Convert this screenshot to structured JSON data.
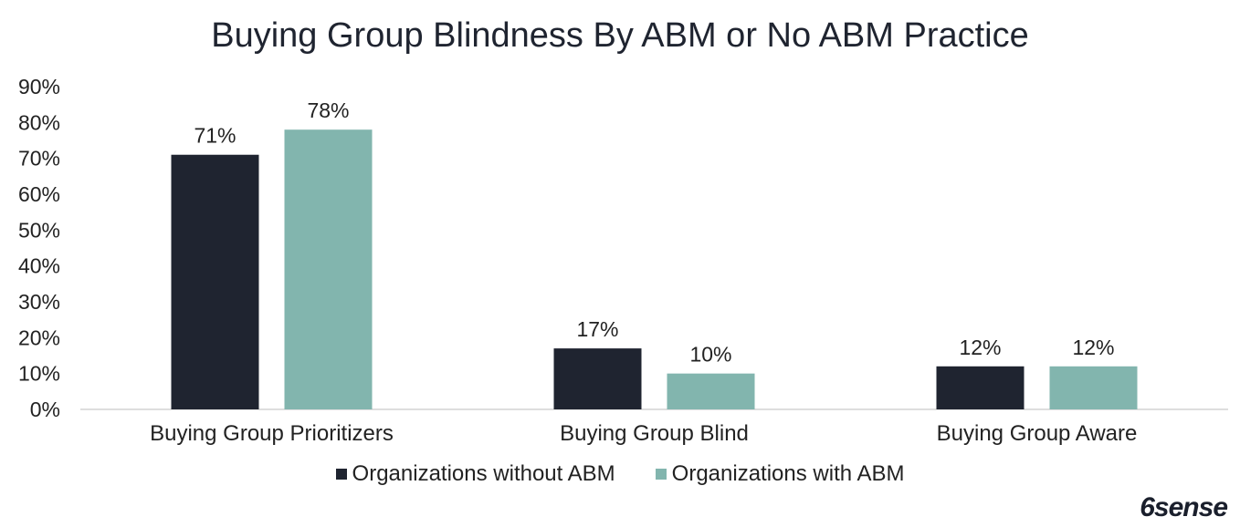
{
  "chart_data": {
    "type": "bar",
    "title": "Buying Group Blindness By ABM or No ABM Practice",
    "categories": [
      "Buying Group Prioritizers",
      "Buying Group Blind",
      "Buying Group Aware"
    ],
    "series": [
      {
        "name": "Organizations without ABM",
        "color": "#1f2430",
        "values": [
          71,
          17,
          12
        ]
      },
      {
        "name": "Organizations with ABM",
        "color": "#82b5ae",
        "values": [
          78,
          10,
          12
        ]
      }
    ],
    "value_labels": [
      [
        "71%",
        "17%",
        "12%"
      ],
      [
        "78%",
        "10%",
        "12%"
      ]
    ],
    "ytick_values": [
      0,
      10,
      20,
      30,
      40,
      50,
      60,
      70,
      80,
      90
    ],
    "yticks": [
      "0%",
      "10%",
      "20%",
      "30%",
      "40%",
      "50%",
      "60%",
      "70%",
      "80%",
      "90%"
    ],
    "ylim": [
      0,
      90
    ],
    "xlabel": "",
    "ylabel": "",
    "grid": false,
    "legend_position": "bottom-center"
  },
  "brand": {
    "logo_text": "6sense"
  }
}
